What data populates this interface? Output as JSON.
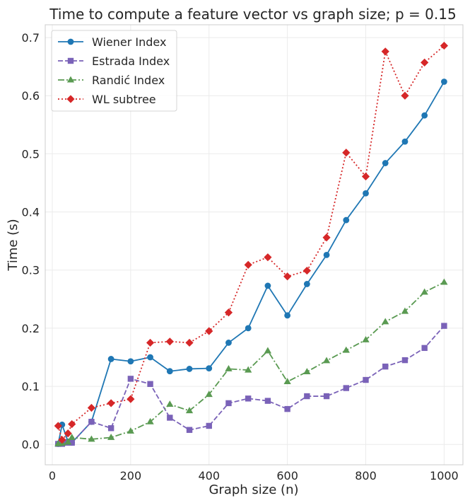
{
  "chart_data": {
    "type": "line",
    "title": "Time to compute a feature vector vs graph size; p = 0.15",
    "xlabel": "Graph size (n)",
    "ylabel": "Time (s)",
    "xlim": [
      -18,
      1048
    ],
    "ylim": [
      -0.035,
      0.722
    ],
    "xticks": [
      0,
      200,
      400,
      600,
      800,
      1000
    ],
    "xtick_labels": [
      "0",
      "200",
      "400",
      "600",
      "800",
      "1000"
    ],
    "yticks": [
      0.0,
      0.1,
      0.2,
      0.3,
      0.4,
      0.5,
      0.6,
      0.7
    ],
    "ytick_labels": [
      "0.0",
      "0.1",
      "0.2",
      "0.3",
      "0.4",
      "0.5",
      "0.6",
      "0.7"
    ],
    "grid": true,
    "legend_position": "top-left",
    "x": [
      15,
      25,
      40,
      50,
      100,
      150,
      200,
      250,
      300,
      350,
      400,
      450,
      500,
      550,
      600,
      650,
      700,
      750,
      800,
      850,
      900,
      950,
      1000
    ],
    "series": [
      {
        "name": "Wiener Index",
        "color": "#1f77b4",
        "dash": "solid",
        "marker": "circle",
        "values": [
          0.001,
          0.034,
          0.005,
          0.003,
          0.039,
          0.147,
          0.143,
          0.15,
          0.126,
          0.13,
          0.131,
          0.175,
          0.2,
          0.273,
          0.222,
          0.276,
          0.326,
          0.386,
          0.432,
          0.484,
          0.521,
          0.566,
          0.624
        ]
      },
      {
        "name": "Estrada Index",
        "color": "#7a62b8",
        "dash": "dashed",
        "marker": "square",
        "values": [
          0.001,
          0.001,
          0.003,
          0.003,
          0.039,
          0.028,
          0.113,
          0.104,
          0.046,
          0.025,
          0.032,
          0.071,
          0.079,
          0.075,
          0.061,
          0.083,
          0.083,
          0.097,
          0.111,
          0.134,
          0.145,
          0.166,
          0.204
        ]
      },
      {
        "name": "Randić Index",
        "color": "#5a9a52",
        "dash": "dashdot",
        "marker": "triangle",
        "values": [
          0.001,
          0.002,
          0.004,
          0.012,
          0.009,
          0.012,
          0.023,
          0.039,
          0.069,
          0.058,
          0.086,
          0.13,
          0.128,
          0.161,
          0.108,
          0.125,
          0.144,
          0.162,
          0.18,
          0.211,
          0.229,
          0.262,
          0.279
        ]
      },
      {
        "name": "WL subtree",
        "color": "#d62728",
        "dash": "dotted",
        "marker": "diamond",
        "values": [
          0.032,
          0.008,
          0.019,
          0.035,
          0.063,
          0.071,
          0.078,
          0.175,
          0.177,
          0.175,
          0.195,
          0.227,
          0.309,
          0.322,
          0.289,
          0.299,
          0.356,
          0.502,
          0.461,
          0.676,
          0.6,
          0.657,
          0.686
        ]
      }
    ]
  }
}
